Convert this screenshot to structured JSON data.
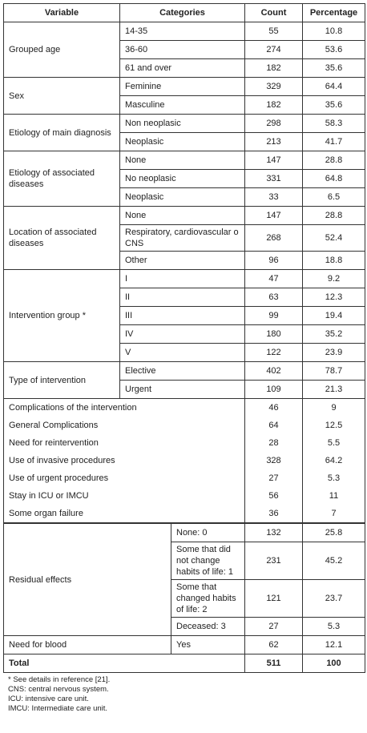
{
  "table": {
    "header": [
      "Variable",
      "Categories",
      "Count",
      "Percentage"
    ],
    "groups": [
      {
        "variable": "Grouped age",
        "rows": [
          [
            "14-35",
            55,
            10.8
          ],
          [
            "36-60",
            274,
            53.6
          ],
          [
            "61 and over",
            182,
            35.6
          ]
        ]
      },
      {
        "variable": "Sex",
        "rows": [
          [
            "Feminine",
            329,
            64.4
          ],
          [
            "Masculine",
            182,
            35.6
          ]
        ]
      },
      {
        "variable": "Etiology of main diagnosis",
        "rows": [
          [
            "Non neoplasic",
            298,
            58.3
          ],
          [
            "Neoplasic",
            213,
            41.7
          ]
        ]
      },
      {
        "variable": "Etiology of associated diseases",
        "rows": [
          [
            "None",
            147,
            28.8
          ],
          [
            "No neoplasic",
            331,
            64.8
          ],
          [
            "Neoplasic",
            33,
            6.5
          ]
        ]
      },
      {
        "variable": "Location of associated diseases",
        "rows": [
          [
            "None",
            147,
            28.8
          ],
          [
            "Respiratory, cardiovascular o CNS",
            268,
            52.4
          ],
          [
            "Other",
            96,
            18.8
          ]
        ]
      },
      {
        "variable": "Intervention group *",
        "rows": [
          [
            "I",
            47,
            9.2
          ],
          [
            "II",
            63,
            12.3
          ],
          [
            "III",
            99,
            19.4
          ],
          [
            "IV",
            180,
            35.2
          ],
          [
            "V",
            122,
            23.9
          ]
        ]
      },
      {
        "variable": "Type of intervention",
        "rows": [
          [
            "Elective",
            402,
            78.7
          ],
          [
            "Urgent",
            109,
            21.3
          ]
        ]
      }
    ],
    "items": [
      [
        "Complications of the intervention",
        46,
        9
      ],
      [
        "General Complications",
        64,
        12.5
      ],
      [
        "Need for reintervention",
        28,
        5.5
      ],
      [
        "Use of invasive procedures",
        328,
        64.2
      ],
      [
        "Use of urgent procedures",
        27,
        5.3
      ],
      [
        "Stay in ICU or IMCU",
        56,
        11
      ],
      [
        "Some organ failure",
        36,
        7
      ]
    ],
    "lower_groups": [
      {
        "variable": "Residual effects",
        "rows": [
          [
            "None: 0",
            132,
            25.8
          ],
          [
            "Some that did not change habits of life: 1",
            231,
            45.2
          ],
          [
            "Some that changed habits of life: 2",
            121,
            23.7
          ],
          [
            "Deceased: 3",
            27,
            5.3
          ]
        ]
      },
      {
        "variable": "Need for blood",
        "rows": [
          [
            "Yes",
            62,
            12.1
          ]
        ]
      }
    ],
    "total": [
      "Total",
      511,
      100
    ]
  },
  "footnotes": [
    "* See details in reference [21].",
    "CNS: central nervous system.",
    "ICU: intensive care unit.",
    "IMCU: Intermediate care unit."
  ]
}
